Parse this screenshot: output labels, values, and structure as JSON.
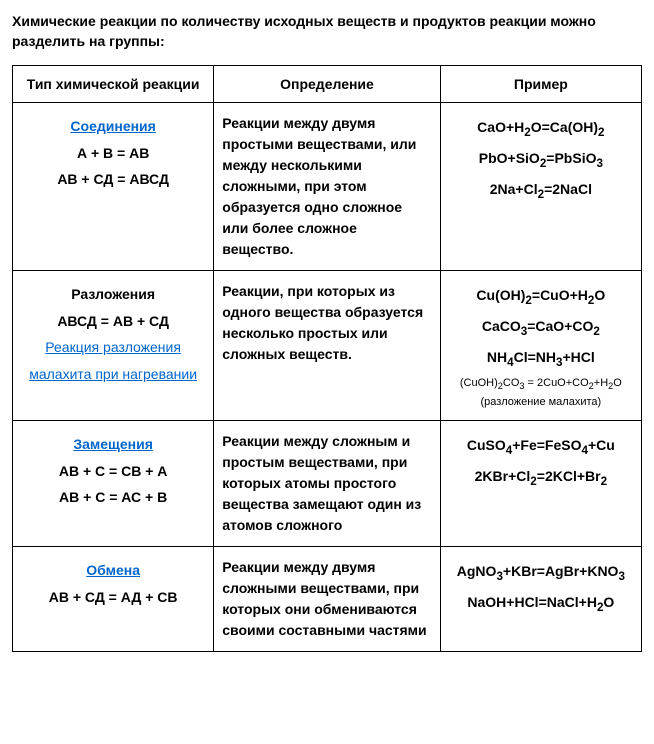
{
  "intro": "Химические реакции по количеству исходных веществ и продуктов реакции можно разделить на группы:",
  "headers": {
    "type": "Тип химической реакции",
    "def": "Определение",
    "ex": "Пример"
  },
  "rows": [
    {
      "title": "Соединения",
      "title_is_link": true,
      "formulas": [
        "А + В = АВ",
        "АВ + СД = АВСД"
      ],
      "extra_link": null,
      "definition": "Реакции между двумя простыми веществами, или между несколькими сложными, при этом образуется одно сложное или более сложное вещество.",
      "examples_html": [
        "CaO+H<sub>2</sub>O=Ca(OH)<sub>2</sub>",
        "PbO+SiO<sub>2</sub>=PbSiO<sub>3</sub>",
        "2Na+Cl<sub>2</sub>=2NaCl"
      ],
      "examples_small": []
    },
    {
      "title": "Разложения",
      "title_is_link": false,
      "formulas": [
        "АВСД = АВ + СД"
      ],
      "extra_link": "Реакция разложения малахита при нагревании",
      "definition": "Реакции, при которых из одного вещества образуется несколько простых или сложных веществ.",
      "examples_html": [
        "Cu(OH)<sub>2</sub>=CuO+H<sub>2</sub>O",
        "CaCO<sub>3</sub>=CaO+CO<sub>2</sub>",
        "NH<sub>4</sub>Cl=NH<sub>3</sub>+HCl"
      ],
      "examples_small": [
        "(CuOH)<sub>2</sub>CO<sub>3</sub> = 2CuO+CO<sub>2</sub>+H<sub>2</sub>O",
        "(разложение малахита)"
      ]
    },
    {
      "title": "Замещения",
      "title_is_link": true,
      "formulas": [
        "АВ + С = СВ + А",
        "АВ + С = АС + В"
      ],
      "extra_link": null,
      "definition": "Реакции между сложным и простым веществами, при которых атомы простого вещества замещают один из атомов сложного",
      "examples_html": [
        "CuSO<sub>4</sub>+Fe=FeSO<sub>4</sub>+Cu",
        "2KBr+Cl<sub>2</sub>=2KCl+Br<sub>2</sub>"
      ],
      "examples_small": []
    },
    {
      "title": "Обмена",
      "title_is_link": true,
      "formulas": [
        "АВ + СД = АД + СВ"
      ],
      "extra_link": null,
      "definition": "Реакции между двумя сложными веществами, при которых они обмениваются своими составными частями",
      "examples_html": [
        "AgNO<sub>3</sub>+KBr=AgBr+KNO<sub>3</sub>",
        "NaOH+HCl=NaCl+H<sub>2</sub>O"
      ],
      "examples_small": []
    }
  ]
}
